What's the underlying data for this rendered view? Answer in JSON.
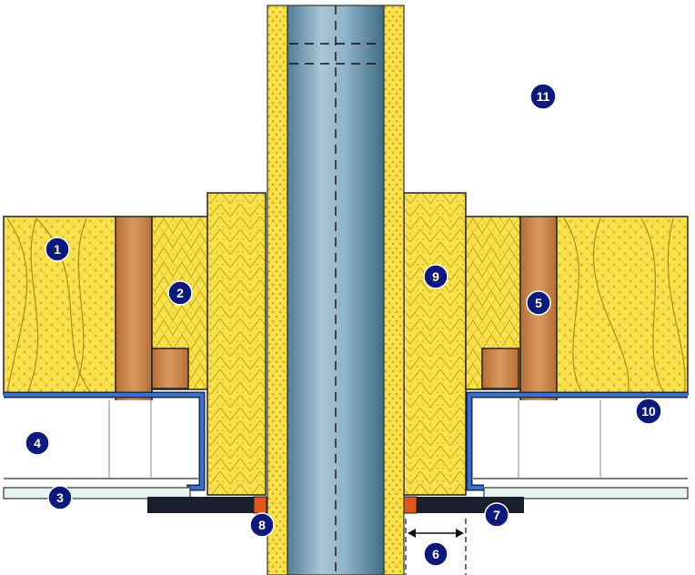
{
  "callouts": [
    {
      "id": "c1",
      "label": "1"
    },
    {
      "id": "c2",
      "label": "2"
    },
    {
      "id": "c3",
      "label": "3"
    },
    {
      "id": "c4",
      "label": "4"
    },
    {
      "id": "c5",
      "label": "5"
    },
    {
      "id": "c6",
      "label": "6"
    },
    {
      "id": "c7",
      "label": "7"
    },
    {
      "id": "c8",
      "label": "8"
    },
    {
      "id": "c9",
      "label": "9"
    },
    {
      "id": "c10",
      "label": "10"
    },
    {
      "id": "c11",
      "label": "11"
    }
  ],
  "colors": {
    "insulation": "#f7e24a",
    "insulation_line": "#c8a31a",
    "insulation_dot": "#e3b43c",
    "timber": "#c8844a",
    "membrane": "#3a6fc9",
    "pipe": "#7fa4bb",
    "seal": "#1a1f2e",
    "intumescent": "#e0561e",
    "callout": "#0d1a7a"
  }
}
